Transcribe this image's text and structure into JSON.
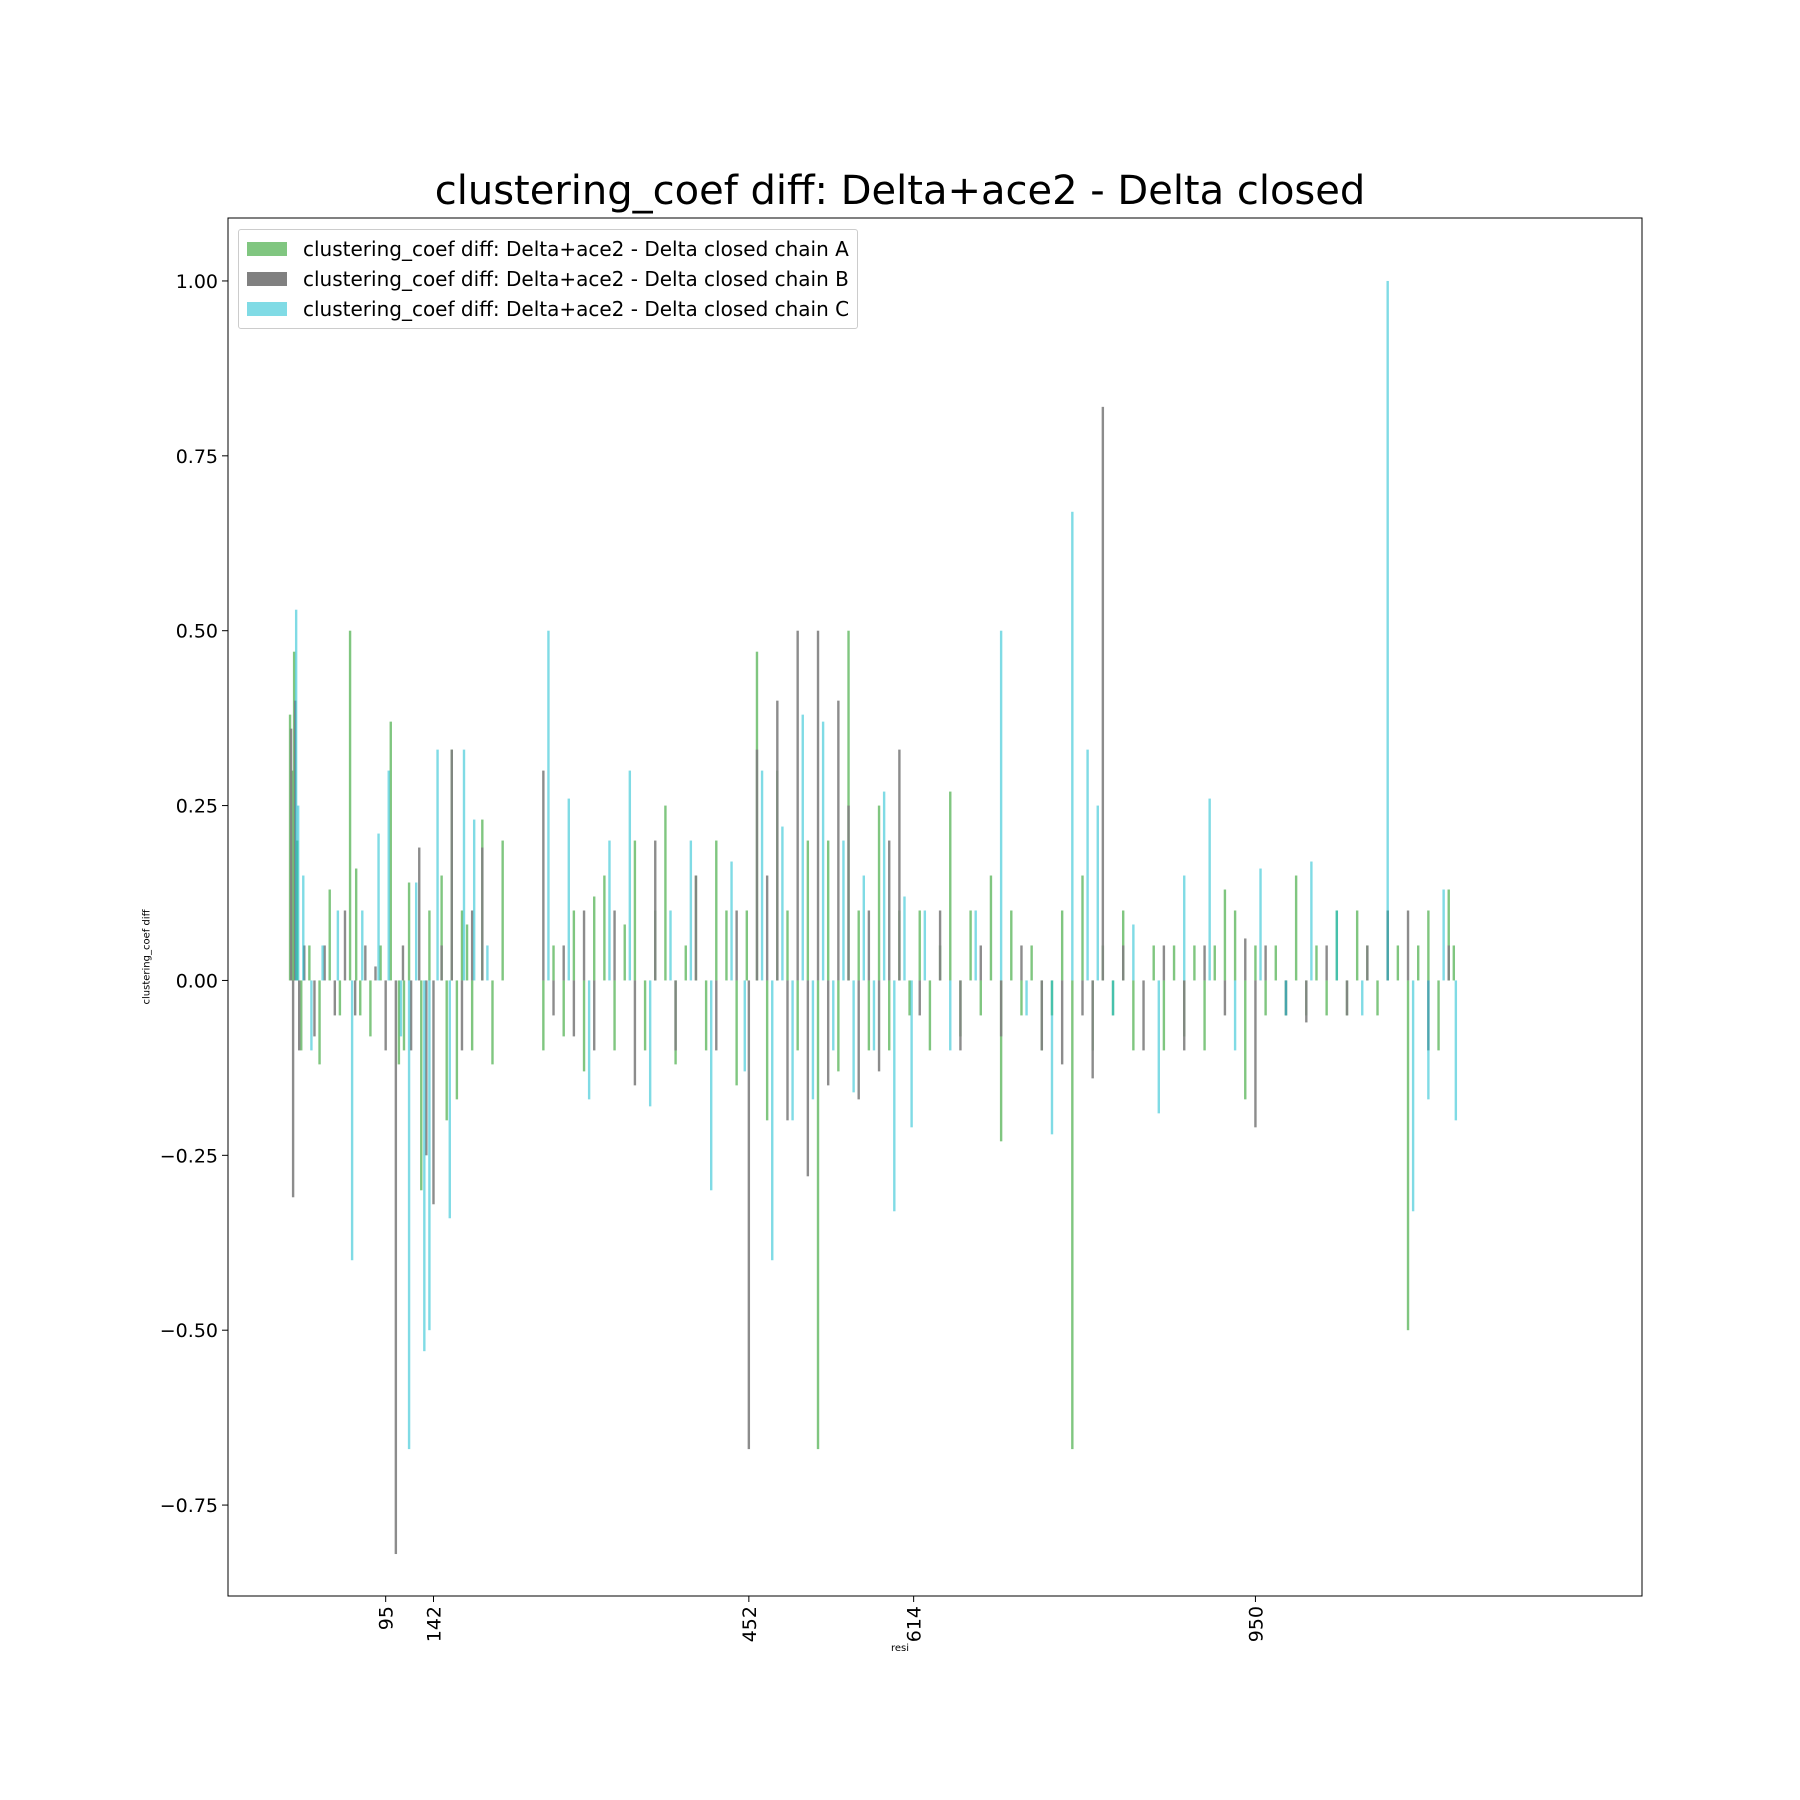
{
  "chart_data": {
    "type": "bar",
    "title": "clustering_coef diff: Delta+ace2 - Delta closed",
    "xlabel": "resi",
    "ylabel": "clustering_coef diff",
    "xlim": [
      -60,
      1330
    ],
    "ylim": [
      -0.88,
      1.09
    ],
    "yticks": [
      -0.75,
      -0.5,
      -0.25,
      0.0,
      0.25,
      0.5,
      0.75,
      1.0
    ],
    "ytick_labels": [
      "−0.75",
      "−0.50",
      "−0.25",
      "0.00",
      "0.25",
      "0.50",
      "0.75",
      "1.00"
    ],
    "xticks": [
      95,
      142,
      452,
      614,
      950
    ],
    "xtick_labels": [
      "95",
      "142",
      "452",
      "614",
      "950"
    ],
    "grid": false,
    "legend_position": "top-left",
    "series": [
      {
        "name": "clustering_coef diff: Delta+ace2 - Delta closed chain A",
        "color": "#2ca02c",
        "x": [
          1,
          3,
          5,
          8,
          12,
          20,
          30,
          40,
          50,
          60,
          66,
          70,
          80,
          90,
          100,
          108,
          113,
          118,
          130,
          138,
          150,
          155,
          160,
          165,
          170,
          175,
          180,
          190,
          200,
          210,
          250,
          260,
          270,
          280,
          290,
          300,
          310,
          320,
          330,
          340,
          350,
          360,
          370,
          380,
          390,
          400,
          410,
          420,
          430,
          440,
          450,
          460,
          470,
          480,
          490,
          500,
          510,
          520,
          530,
          540,
          550,
          560,
          570,
          580,
          590,
          600,
          610,
          620,
          630,
          640,
          650,
          660,
          670,
          680,
          690,
          700,
          710,
          720,
          730,
          740,
          750,
          760,
          770,
          780,
          790,
          800,
          810,
          820,
          830,
          850,
          860,
          870,
          880,
          890,
          900,
          910,
          920,
          930,
          940,
          950,
          960,
          970,
          980,
          990,
          1000,
          1010,
          1020,
          1030,
          1040,
          1050,
          1060,
          1070,
          1080,
          1090,
          1100,
          1110,
          1120,
          1130,
          1140,
          1145
        ],
        "values": [
          0.38,
          0.3,
          0.47,
          0.2,
          -0.1,
          0.05,
          -0.12,
          0.13,
          -0.05,
          0.5,
          0.16,
          -0.05,
          -0.08,
          0.05,
          0.37,
          -0.12,
          -0.1,
          0.14,
          -0.3,
          0.1,
          0.15,
          -0.2,
          0.33,
          -0.17,
          0.1,
          0.08,
          -0.1,
          0.23,
          -0.12,
          0.2,
          -0.1,
          0.05,
          -0.08,
          0.1,
          -0.13,
          0.12,
          0.15,
          -0.1,
          0.08,
          0.2,
          -0.1,
          0.1,
          0.25,
          -0.12,
          0.05,
          0.15,
          -0.1,
          0.2,
          0.1,
          -0.15,
          0.1,
          0.47,
          -0.2,
          0.3,
          0.1,
          -0.1,
          0.2,
          -0.67,
          0.2,
          -0.13,
          0.5,
          0.1,
          -0.1,
          0.25,
          -0.1,
          0.1,
          -0.05,
          0.1,
          -0.1,
          0.05,
          0.27,
          -0.08,
          0.1,
          -0.05,
          0.15,
          -0.23,
          0.1,
          -0.05,
          0.05,
          -0.1,
          -0.05,
          0.1,
          -0.67,
          0.15,
          -0.1,
          0.05,
          -0.05,
          0.1,
          -0.1,
          0.05,
          -0.1,
          0.05,
          -0.08,
          0.05,
          -0.1,
          0.05,
          0.13,
          0.1,
          -0.17,
          0.05,
          -0.05,
          0.05,
          -0.05,
          0.15,
          -0.05,
          0.05,
          -0.05,
          0.1,
          -0.05,
          0.1,
          0.05,
          -0.05,
          0.1,
          0.05,
          -0.5,
          0.05,
          0.1,
          -0.1,
          0.13,
          0.05
        ]
      },
      {
        "name": "clustering_coef diff: Delta+ace2 - Delta closed chain B",
        "color": "#808080",
        "x": [
          2,
          4,
          6,
          10,
          15,
          25,
          35,
          45,
          55,
          65,
          75,
          85,
          95,
          105,
          112,
          120,
          128,
          135,
          142,
          150,
          160,
          170,
          180,
          190,
          250,
          260,
          270,
          280,
          290,
          300,
          320,
          340,
          360,
          380,
          400,
          420,
          440,
          452,
          460,
          470,
          480,
          490,
          500,
          510,
          520,
          530,
          540,
          550,
          560,
          570,
          580,
          590,
          600,
          620,
          640,
          660,
          680,
          700,
          720,
          740,
          760,
          780,
          790,
          800,
          820,
          840,
          860,
          880,
          900,
          920,
          940,
          950,
          960,
          980,
          1000,
          1020,
          1040,
          1060,
          1080,
          1100,
          1120,
          1140
        ],
        "values": [
          0.36,
          -0.31,
          0.4,
          -0.1,
          0.05,
          -0.08,
          0.05,
          -0.05,
          0.1,
          -0.05,
          0.05,
          0.02,
          -0.1,
          -0.82,
          0.05,
          -0.1,
          0.19,
          -0.25,
          -0.32,
          0.05,
          0.33,
          -0.1,
          0.1,
          0.19,
          0.3,
          -0.05,
          0.05,
          -0.08,
          0.1,
          -0.1,
          0.1,
          -0.15,
          0.2,
          -0.1,
          0.15,
          -0.1,
          0.1,
          -0.67,
          0.33,
          0.15,
          0.4,
          -0.2,
          0.5,
          -0.28,
          0.5,
          -0.15,
          0.4,
          0.25,
          -0.17,
          0.1,
          -0.13,
          0.2,
          0.33,
          -0.05,
          0.1,
          -0.1,
          0.05,
          -0.08,
          0.05,
          -0.1,
          -0.12,
          -0.05,
          -0.14,
          0.82,
          0.05,
          -0.1,
          0.05,
          -0.1,
          0.05,
          -0.05,
          0.06,
          -0.21,
          0.05,
          -0.05,
          -0.06,
          0.05,
          -0.05,
          0.05,
          0.1,
          0.1,
          -0.1,
          0.05
        ]
      },
      {
        "name": "clustering_coef diff: Delta+ace2 - Delta closed chain C",
        "color": "#17becf",
        "x": [
          7,
          9,
          14,
          22,
          33,
          48,
          62,
          72,
          88,
          98,
          110,
          118,
          125,
          133,
          138,
          146,
          158,
          172,
          182,
          195,
          255,
          275,
          295,
          315,
          335,
          355,
          375,
          395,
          415,
          435,
          448,
          465,
          475,
          485,
          495,
          505,
          515,
          525,
          535,
          545,
          555,
          565,
          575,
          585,
          595,
          605,
          612,
          625,
          650,
          675,
          700,
          725,
          750,
          770,
          785,
          795,
          810,
          830,
          855,
          880,
          905,
          930,
          955,
          980,
          1005,
          1030,
          1055,
          1080,
          1105,
          1120,
          1135,
          1147
        ],
        "values": [
          0.53,
          0.25,
          0.15,
          -0.1,
          0.05,
          0.1,
          -0.4,
          0.1,
          0.21,
          0.3,
          -0.08,
          -0.67,
          0.14,
          -0.53,
          -0.5,
          0.33,
          -0.34,
          0.33,
          0.23,
          0.05,
          0.5,
          0.26,
          -0.17,
          0.2,
          0.3,
          -0.18,
          0.1,
          0.2,
          -0.3,
          0.17,
          -0.13,
          0.3,
          -0.4,
          0.22,
          -0.2,
          0.38,
          -0.17,
          0.37,
          -0.1,
          0.2,
          -0.16,
          0.15,
          -0.1,
          0.27,
          -0.33,
          0.12,
          -0.21,
          0.1,
          -0.1,
          0.1,
          0.5,
          -0.05,
          -0.22,
          0.67,
          0.33,
          0.25,
          -0.05,
          0.08,
          -0.19,
          0.15,
          0.26,
          -0.1,
          0.16,
          -0.05,
          0.17,
          0.1,
          -0.05,
          1.0,
          -0.33,
          -0.17,
          0.13,
          -0.2
        ]
      }
    ]
  }
}
